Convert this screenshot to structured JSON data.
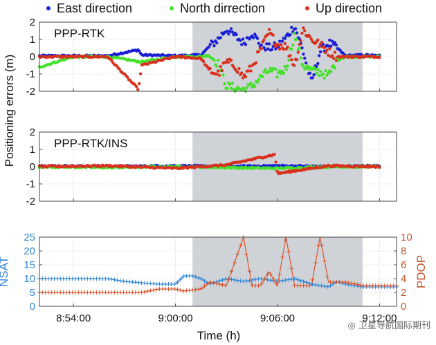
{
  "legend": [
    {
      "label": "East direction",
      "color": "#1a1fd6"
    },
    {
      "label": "North dirrection",
      "color": "#46e02c"
    },
    {
      "label": "Up direction",
      "color": "#d8311e"
    }
  ],
  "xlabel": "Time (h)",
  "shared_ylabel": "Positioning errors (m)",
  "watermark": "卫星导航国际期刊",
  "chart_data": [
    {
      "type": "scatter",
      "title": "PPP-RTK",
      "ylim": [
        -2,
        2
      ],
      "yticks": [
        "2",
        "1",
        "0",
        "-1",
        "-2"
      ],
      "xlim": [
        "8:52:00",
        "9:13:00"
      ],
      "xticks": [
        "8:54:00",
        "9:00:00",
        "9:06:00",
        "9:12:00"
      ],
      "shaded_interval": [
        "9:01:00",
        "9:11:00"
      ],
      "grid": true,
      "series": [
        {
          "name": "East direction",
          "color": "#1a1fd6",
          "description_points": [
            [
              "8:52:00",
              0.05
            ],
            [
              "8:54:00",
              0.05
            ],
            [
              "8:56:00",
              0.05
            ],
            [
              "8:57:50",
              0.4
            ],
            [
              "8:58:00",
              0.1
            ],
            [
              "9:00:00",
              0.05
            ],
            [
              "9:01:30",
              0.1
            ],
            [
              "9:02:00",
              0.6
            ],
            [
              "9:02:30",
              1.0
            ],
            [
              "9:03:00",
              1.6
            ],
            [
              "9:03:30",
              1.2
            ],
            [
              "9:04:00",
              0.8
            ],
            [
              "9:04:30",
              1.4
            ],
            [
              "9:05:00",
              0.7
            ],
            [
              "9:05:30",
              0.5
            ],
            [
              "9:06:00",
              0.6
            ],
            [
              "9:06:30",
              1.1
            ],
            [
              "9:07:00",
              1.8
            ],
            [
              "9:07:30",
              0.3
            ],
            [
              "9:08:00",
              -1.5
            ],
            [
              "9:08:30",
              0.3
            ],
            [
              "9:09:00",
              0.8
            ],
            [
              "9:09:30",
              0.5
            ],
            [
              "9:10:00",
              0.05
            ],
            [
              "9:11:00",
              0.1
            ],
            [
              "9:12:00",
              0.05
            ]
          ]
        },
        {
          "name": "North dirrection",
          "color": "#46e02c",
          "description_points": [
            [
              "8:52:00",
              -0.6
            ],
            [
              "8:54:00",
              0.0
            ],
            [
              "8:56:00",
              0.0
            ],
            [
              "8:58:00",
              -0.3
            ],
            [
              "9:00:00",
              0.0
            ],
            [
              "9:01:30",
              0.0
            ],
            [
              "9:02:00",
              0.1
            ],
            [
              "9:02:30",
              -0.4
            ],
            [
              "9:03:00",
              -1.7
            ],
            [
              "9:03:30",
              -1.8
            ],
            [
              "9:04:00",
              -1.9
            ],
            [
              "9:04:30",
              -1.7
            ],
            [
              "9:05:00",
              -1.2
            ],
            [
              "9:05:30",
              -0.8
            ],
            [
              "9:06:00",
              -1.0
            ],
            [
              "9:06:30",
              -0.7
            ],
            [
              "9:07:00",
              1.3
            ],
            [
              "9:07:30",
              -0.5
            ],
            [
              "9:08:00",
              -0.8
            ],
            [
              "9:08:30",
              -0.9
            ],
            [
              "9:09:00",
              -1.1
            ],
            [
              "9:09:30",
              -0.2
            ],
            [
              "9:10:00",
              0.0
            ],
            [
              "9:11:00",
              0.0
            ],
            [
              "9:12:00",
              0.0
            ]
          ]
        },
        {
          "name": "Up direction",
          "color": "#d8311e",
          "description_points": [
            [
              "8:52:00",
              0.0
            ],
            [
              "8:54:00",
              0.0
            ],
            [
              "8:56:00",
              0.0
            ],
            [
              "8:57:50",
              -1.9
            ],
            [
              "8:58:00",
              -0.5
            ],
            [
              "9:00:00",
              0.0
            ],
            [
              "9:01:30",
              -0.1
            ],
            [
              "9:02:00",
              -0.8
            ],
            [
              "9:02:30",
              -1.0
            ],
            [
              "9:03:00",
              -0.3
            ],
            [
              "9:03:30",
              -0.5
            ],
            [
              "9:04:00",
              -1.2
            ],
            [
              "9:04:30",
              -0.6
            ],
            [
              "9:05:00",
              0.4
            ],
            [
              "9:05:30",
              1.4
            ],
            [
              "9:06:00",
              0.7
            ],
            [
              "9:06:30",
              0.6
            ],
            [
              "9:07:00",
              -0.5
            ],
            [
              "9:07:30",
              1.6
            ],
            [
              "9:08:00",
              1.0
            ],
            [
              "9:08:30",
              0.7
            ],
            [
              "9:09:00",
              0.3
            ],
            [
              "9:09:30",
              0.0
            ],
            [
              "9:10:00",
              0.0
            ],
            [
              "9:11:00",
              0.0
            ],
            [
              "9:12:00",
              0.0
            ]
          ]
        }
      ]
    },
    {
      "type": "scatter",
      "title": "PPP-RTK/INS",
      "ylim": [
        -2,
        2
      ],
      "yticks": [
        "2",
        "1",
        "0",
        "-1",
        "-2"
      ],
      "xlim": [
        "8:52:00",
        "9:13:00"
      ],
      "xticks": [
        "8:54:00",
        "9:00:00",
        "9:06:00",
        "9:12:00"
      ],
      "shaded_interval": [
        "9:01:00",
        "9:11:00"
      ],
      "grid": true,
      "series": [
        {
          "name": "East direction",
          "color": "#1a1fd6",
          "description_points": [
            [
              "8:52:00",
              0.05
            ],
            [
              "8:56:00",
              0.0
            ],
            [
              "9:00:00",
              0.05
            ],
            [
              "9:03:00",
              0.0
            ],
            [
              "9:06:00",
              0.05
            ],
            [
              "9:09:00",
              0.0
            ],
            [
              "9:12:00",
              0.05
            ]
          ]
        },
        {
          "name": "North dirrection",
          "color": "#46e02c",
          "description_points": [
            [
              "8:52:00",
              0.0
            ],
            [
              "8:56:00",
              -0.05
            ],
            [
              "9:00:00",
              0.0
            ],
            [
              "9:03:00",
              -0.05
            ],
            [
              "9:06:00",
              -0.1
            ],
            [
              "9:09:00",
              0.0
            ],
            [
              "9:12:00",
              0.0
            ]
          ]
        },
        {
          "name": "Up direction",
          "color": "#d8311e",
          "description_points": [
            [
              "8:52:00",
              0.0
            ],
            [
              "8:56:00",
              0.05
            ],
            [
              "9:00:00",
              -0.1
            ],
            [
              "9:03:00",
              0.1
            ],
            [
              "9:05:50",
              0.7
            ],
            [
              "9:06:00",
              -0.4
            ],
            [
              "9:09:00",
              0.05
            ],
            [
              "9:12:00",
              0.0
            ]
          ]
        }
      ]
    },
    {
      "type": "line",
      "ylabel_left": "NSAT",
      "ylabel_right": "PDOP",
      "ylim_left": [
        0,
        25
      ],
      "ylim_right": [
        0,
        10
      ],
      "yticks_left": [
        "0",
        "5",
        "10",
        "15",
        "20",
        "25"
      ],
      "yticks_right": [
        "0",
        "2",
        "4",
        "6",
        "8",
        "10"
      ],
      "xlim": [
        "8:52:00",
        "9:13:00"
      ],
      "xticks": [
        "8:54:00",
        "9:00:00",
        "9:06:00",
        "9:12:00"
      ],
      "shaded_interval": [
        "9:01:00",
        "9:11:00"
      ],
      "grid": true,
      "series": [
        {
          "name": "NSAT",
          "axis": "left",
          "color": "#2f86d6",
          "description_points": [
            [
              "8:52:00",
              10
            ],
            [
              "8:56:00",
              10
            ],
            [
              "8:57:00",
              9
            ],
            [
              "8:59:00",
              8
            ],
            [
              "9:00:00",
              8
            ],
            [
              "9:00:30",
              11
            ],
            [
              "9:01:00",
              11
            ],
            [
              "9:01:30",
              10
            ],
            [
              "9:02:00",
              8
            ],
            [
              "9:03:00",
              10
            ],
            [
              "9:04:00",
              9
            ],
            [
              "9:05:00",
              10
            ],
            [
              "9:06:00",
              9
            ],
            [
              "9:07:00",
              10
            ],
            [
              "9:08:00",
              8
            ],
            [
              "9:09:00",
              7
            ],
            [
              "9:09:30",
              9
            ],
            [
              "9:10:00",
              8
            ],
            [
              "9:11:00",
              7
            ],
            [
              "9:12:00",
              7
            ],
            [
              "9:13:00",
              7
            ]
          ]
        },
        {
          "name": "PDOP",
          "axis": "right",
          "color": "#d9532c",
          "description_points": [
            [
              "8:52:00",
              2
            ],
            [
              "8:56:00",
              2
            ],
            [
              "8:58:00",
              2
            ],
            [
              "8:59:00",
              2.5
            ],
            [
              "9:00:00",
              2.5
            ],
            [
              "9:00:30",
              2.2
            ],
            [
              "9:01:30",
              2.5
            ],
            [
              "9:02:00",
              3.5
            ],
            [
              "9:03:00",
              3
            ],
            [
              "9:04:00",
              10
            ],
            [
              "9:04:30",
              3
            ],
            [
              "9:05:00",
              3
            ],
            [
              "9:05:30",
              5
            ],
            [
              "9:06:00",
              3
            ],
            [
              "9:06:30",
              10
            ],
            [
              "9:07:00",
              3
            ],
            [
              "9:08:00",
              3
            ],
            [
              "9:08:30",
              10
            ],
            [
              "9:09:00",
              3.5
            ],
            [
              "9:10:00",
              3.5
            ],
            [
              "9:11:00",
              3
            ],
            [
              "9:12:00",
              3
            ],
            [
              "9:13:00",
              3
            ]
          ]
        }
      ]
    }
  ]
}
